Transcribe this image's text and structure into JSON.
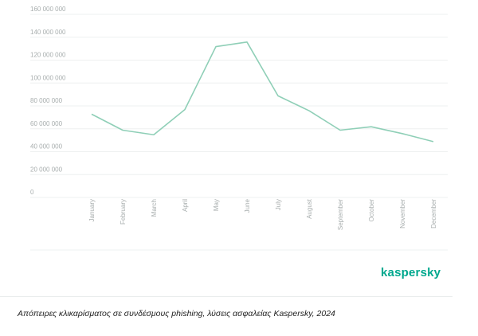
{
  "chart_data": {
    "type": "line",
    "title": "",
    "xlabel": "",
    "ylabel": "",
    "categories": [
      "January",
      "February",
      "March",
      "April",
      "May",
      "June",
      "July",
      "August",
      "September",
      "October",
      "November",
      "December"
    ],
    "y_ticks": [
      "0",
      "20 000 000",
      "40 000 000",
      "60 000 000",
      "80 000 000",
      "100 000 000",
      "120 000 000",
      "140 000 000",
      "160 000 000"
    ],
    "ylim": [
      0,
      160000000
    ],
    "series": [
      {
        "values": [
          70000000,
          56000000,
          52000000,
          74000000,
          129000000,
          133000000,
          86000000,
          73000000,
          56000000,
          59000000,
          53000000,
          46000000
        ],
        "color": "#8fcfb7"
      }
    ],
    "grid": true,
    "legend": "none"
  },
  "brand": "kaspersky",
  "brand_color": "#00a88e",
  "caption": "Απόπειρες κλικαρίσματος σε συνδέσμους phishing, λύσεις ασφαλείας Kaspersky, 2024"
}
